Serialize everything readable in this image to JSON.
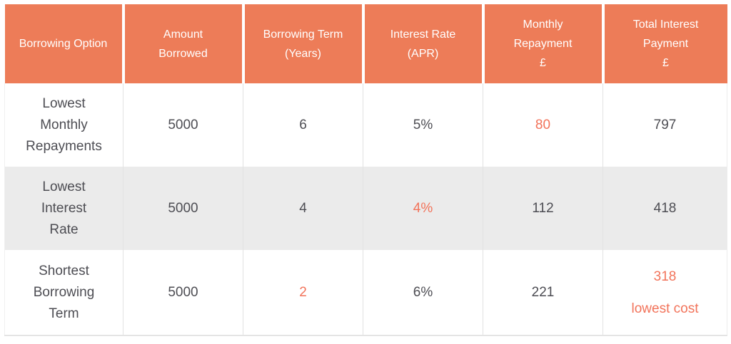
{
  "colors": {
    "header_bg": "#ed7c58",
    "header_text": "#ffffff",
    "body_text": "#4d4d53",
    "accent_text": "#f2735a",
    "alt_row_bg": "#ebebeb",
    "grid_line": "#e2e2e2"
  },
  "table": {
    "headers": [
      "Borrowing Option",
      "Amount\nBorrowed",
      "Borrowing Term\n(Years)",
      "Interest Rate\n(APR)",
      "Monthly\nRepayment\n£",
      "Total Interest\nPayment\n£"
    ],
    "rows": [
      {
        "alt": false,
        "cells": [
          {
            "text": "Lowest\nMonthly\nRepayments",
            "highlight": false
          },
          {
            "text": "5000",
            "highlight": false
          },
          {
            "text": "6",
            "highlight": false
          },
          {
            "text": "5%",
            "highlight": false
          },
          {
            "text": "80",
            "highlight": true
          },
          {
            "text": "797",
            "highlight": false
          }
        ]
      },
      {
        "alt": true,
        "cells": [
          {
            "text": "Lowest\nInterest\nRate",
            "highlight": false
          },
          {
            "text": "5000",
            "highlight": false
          },
          {
            "text": "4",
            "highlight": false
          },
          {
            "text": "4%",
            "highlight": true
          },
          {
            "text": "112",
            "highlight": false
          },
          {
            "text": "418",
            "highlight": false
          }
        ]
      },
      {
        "alt": false,
        "cells": [
          {
            "text": "Shortest\nBorrowing\nTerm",
            "highlight": false
          },
          {
            "text": "5000",
            "highlight": false
          },
          {
            "text": "2",
            "highlight": true
          },
          {
            "text": "6%",
            "highlight": false
          },
          {
            "text": "221",
            "highlight": false
          },
          {
            "text": "318\nlowest cost",
            "highlight": true,
            "spaced": true
          }
        ]
      }
    ]
  },
  "chart_data": {
    "type": "table",
    "title": "Borrowing options comparison",
    "columns": [
      "Borrowing Option",
      "Amount Borrowed",
      "Borrowing Term (Years)",
      "Interest Rate (APR)",
      "Monthly Repayment £",
      "Total Interest Payment £"
    ],
    "rows": [
      [
        "Lowest Monthly Repayments",
        5000,
        6,
        "5%",
        80,
        797
      ],
      [
        "Lowest Interest Rate",
        5000,
        4,
        "4%",
        112,
        418
      ],
      [
        "Shortest Borrowing Term",
        5000,
        2,
        "6%",
        221,
        "318 lowest cost"
      ]
    ],
    "highlighted_cells": [
      {
        "row": 0,
        "column": "Monthly Repayment £",
        "value": "80"
      },
      {
        "row": 1,
        "column": "Interest Rate (APR)",
        "value": "4%"
      },
      {
        "row": 2,
        "column": "Borrowing Term (Years)",
        "value": "2"
      },
      {
        "row": 2,
        "column": "Total Interest Payment £",
        "value": "318 lowest cost"
      }
    ]
  }
}
